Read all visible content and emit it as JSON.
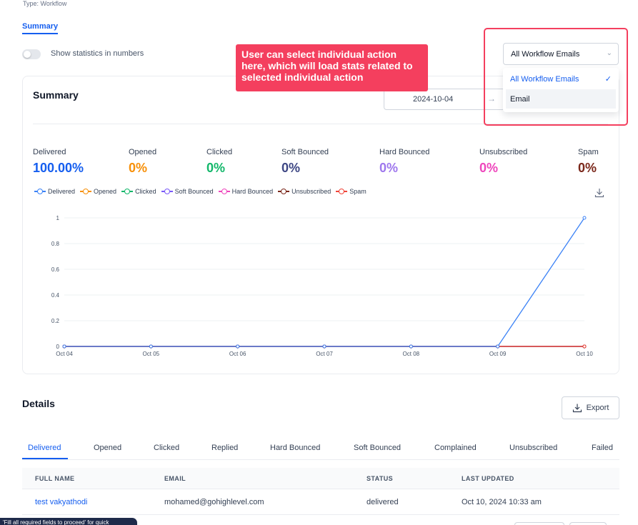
{
  "header": {
    "type_line": "Type: Workflow",
    "tab_label": "Summary",
    "toggle_label": "Show statistics in numbers"
  },
  "callout": {
    "text": "User can select individual action here, which will load stats related to selected individual action"
  },
  "summary_card": {
    "title": "Summary",
    "date": "2024-10-04",
    "date_arrow": "→"
  },
  "action_select": {
    "value": "All Workflow Emails",
    "options": [
      "All Workflow Emails",
      "Email"
    ],
    "selected_index": 0,
    "check": "✓",
    "chevron": "⌄"
  },
  "stats": [
    {
      "label": "Delivered",
      "value": "100.00%",
      "color": "#155eef"
    },
    {
      "label": "Opened",
      "value": "0%",
      "color": "#f79009"
    },
    {
      "label": "Clicked",
      "value": "0%",
      "color": "#12b76a"
    },
    {
      "label": "Soft Bounced",
      "value": "0%",
      "color": "#3e4784"
    },
    {
      "label": "Hard Bounced",
      "value": "0%",
      "color": "#9e77ed"
    },
    {
      "label": "Unsubscribed",
      "value": "0%",
      "color": "#ee46bc"
    },
    {
      "label": "Spam",
      "value": "0%",
      "color": "#7a271a"
    }
  ],
  "chart_data": {
    "type": "line",
    "categories": [
      "Oct 04",
      "Oct 05",
      "Oct 06",
      "Oct 07",
      "Oct 08",
      "Oct 09",
      "Oct 10"
    ],
    "ylim": [
      0,
      1
    ],
    "yticks": [
      "0",
      "0.2",
      "0.4",
      "0.6",
      "0.8",
      "1"
    ],
    "grid": true,
    "legend_position": "top-left",
    "series": [
      {
        "name": "Delivered",
        "color": "#3b82f6",
        "values": [
          0,
          0,
          0,
          0,
          0,
          0,
          1
        ]
      },
      {
        "name": "Opened",
        "color": "#f79009",
        "values": [
          0,
          0,
          0,
          0,
          0,
          0,
          0
        ]
      },
      {
        "name": "Clicked",
        "color": "#12b76a",
        "values": [
          0,
          0,
          0,
          0,
          0,
          0,
          0
        ]
      },
      {
        "name": "Soft Bounced",
        "color": "#7a5af8",
        "values": [
          0,
          0,
          0,
          0,
          0,
          0,
          0
        ]
      },
      {
        "name": "Hard Bounced",
        "color": "#ee46bc",
        "values": [
          0,
          0,
          0,
          0,
          0,
          0,
          0
        ]
      },
      {
        "name": "Unsubscribed",
        "color": "#7a271a",
        "values": [
          0,
          0,
          0,
          0,
          0,
          0,
          0
        ]
      },
      {
        "name": "Spam",
        "color": "#f04438",
        "values": [
          0,
          0,
          0,
          0,
          0,
          0,
          0
        ]
      }
    ]
  },
  "details": {
    "title": "Details",
    "export_label": "Export",
    "tabs": [
      "Delivered",
      "Opened",
      "Clicked",
      "Replied",
      "Hard Bounced",
      "Soft Bounced",
      "Complained",
      "Unsubscribed",
      "Failed"
    ],
    "columns": [
      "FULL NAME",
      "EMAIL",
      "STATUS",
      "LAST UPDATED"
    ],
    "rows": [
      {
        "full_name": "test vakyathodi",
        "email": "mohamed@gohighlevel.com",
        "status": "delivered",
        "last_updated": "Oct 10, 2024 10:33 am"
      }
    ]
  },
  "tooltip": {
    "text": "'Fill all required fields to proceed' for quick"
  }
}
